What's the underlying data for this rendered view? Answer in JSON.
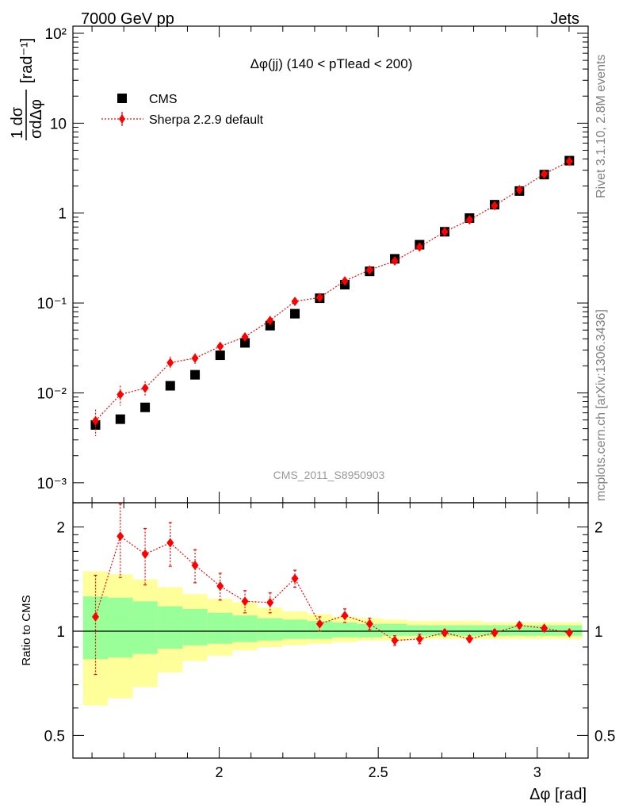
{
  "header": {
    "left": "7000 GeV pp",
    "right": "Jets"
  },
  "side_labels": {
    "rivet": "Rivet 3.1.10,  2.8M events",
    "mcplots": "mcplots.cern.ch [arXiv:1306.3436]"
  },
  "watermark": "CMS_2011_S8950903",
  "colors": {
    "data": "#000000",
    "mc": "#ff0000",
    "band_inner": "#99ff99",
    "band_outer": "#ffff99"
  },
  "chart_data": [
    {
      "type": "scatter",
      "title": "Δφ(jj) (140 < pTlead <  200)",
      "ylabel": "1/σ dσ/dΔφ [rad⁻¹]",
      "xlabel": "Δφ [rad]",
      "log_y": true,
      "xlim": [
        1.54,
        3.16
      ],
      "ylim": [
        0.0006,
        120
      ],
      "y_ticks": [
        "10⁻³",
        "10⁻²",
        "10⁻¹",
        "1",
        "10",
        "10²"
      ],
      "legend_position": "top-left",
      "x": [
        1.611,
        1.689,
        1.767,
        1.846,
        1.924,
        2.003,
        2.081,
        2.16,
        2.238,
        2.316,
        2.395,
        2.473,
        2.552,
        2.63,
        2.709,
        2.787,
        2.866,
        2.944,
        3.022,
        3.101
      ],
      "series": [
        {
          "name": "CMS",
          "values": [
            0.0044,
            0.0051,
            0.0069,
            0.012,
            0.0159,
            0.0262,
            0.036,
            0.056,
            0.076,
            0.113,
            0.16,
            0.225,
            0.31,
            0.445,
            0.62,
            0.88,
            1.24,
            1.76,
            2.68,
            3.83
          ]
        },
        {
          "name": "Sherpa 2.2.9 default",
          "values": [
            0.0049,
            0.0096,
            0.0113,
            0.0217,
            0.0243,
            0.033,
            0.042,
            0.064,
            0.104,
            0.115,
            0.176,
            0.233,
            0.293,
            0.42,
            0.62,
            0.84,
            1.21,
            1.82,
            2.72,
            3.77
          ],
          "errors": [
            0.0016,
            0.0024,
            0.0022,
            0.0036,
            0.0033,
            0.0034,
            0.0035,
            0.0046,
            0.0064,
            0.006,
            0.008,
            0.009,
            0.01,
            0.012,
            0.015,
            0.018,
            0.022,
            0.028,
            0.033,
            0.04
          ]
        }
      ]
    },
    {
      "type": "scatter",
      "ylabel": "Ratio to CMS",
      "xlabel": "Δφ [rad]",
      "xlim": [
        1.54,
        3.16
      ],
      "ylim": [
        0.43,
        2.35
      ],
      "x_ticks": [
        "2",
        "2.5",
        "3"
      ],
      "y_ticks": [
        "0.5",
        "1",
        "2"
      ],
      "x_edges": [
        1.572,
        1.65,
        1.728,
        1.806,
        1.885,
        1.963,
        2.042,
        2.12,
        2.199,
        2.277,
        2.356,
        2.434,
        2.513,
        2.591,
        2.67,
        2.748,
        2.827,
        2.905,
        2.984,
        3.062,
        3.141
      ],
      "band_outer": [
        [
          0.61,
          1.49
        ],
        [
          0.64,
          1.46
        ],
        [
          0.69,
          1.41
        ],
        [
          0.76,
          1.34
        ],
        [
          0.82,
          1.28
        ],
        [
          0.85,
          1.24
        ],
        [
          0.88,
          1.21
        ],
        [
          0.9,
          1.17
        ],
        [
          0.91,
          1.14
        ],
        [
          0.92,
          1.12
        ],
        [
          0.93,
          1.1
        ],
        [
          0.94,
          1.09
        ],
        [
          0.94,
          1.08
        ],
        [
          0.95,
          1.07
        ],
        [
          0.95,
          1.07
        ],
        [
          0.95,
          1.07
        ],
        [
          0.95,
          1.06
        ],
        [
          0.95,
          1.06
        ],
        [
          0.95,
          1.06
        ],
        [
          0.95,
          1.06
        ]
      ],
      "band_inner": [
        [
          0.83,
          1.26
        ],
        [
          0.84,
          1.25
        ],
        [
          0.86,
          1.22
        ],
        [
          0.89,
          1.18
        ],
        [
          0.91,
          1.16
        ],
        [
          0.92,
          1.13
        ],
        [
          0.93,
          1.11
        ],
        [
          0.94,
          1.09
        ],
        [
          0.95,
          1.08
        ],
        [
          0.95,
          1.07
        ],
        [
          0.96,
          1.06
        ],
        [
          0.96,
          1.05
        ],
        [
          0.97,
          1.05
        ],
        [
          0.97,
          1.04
        ],
        [
          0.97,
          1.04
        ],
        [
          0.97,
          1.04
        ],
        [
          0.97,
          1.04
        ],
        [
          0.97,
          1.04
        ],
        [
          0.97,
          1.04
        ],
        [
          0.97,
          1.04
        ]
      ],
      "series": [
        {
          "name": "Sherpa 2.2.9 default",
          "values": [
            1.1,
            1.88,
            1.67,
            1.8,
            1.55,
            1.35,
            1.22,
            1.21,
            1.42,
            1.05,
            1.11,
            1.05,
            0.94,
            0.95,
            0.99,
            0.95,
            0.99,
            1.04,
            1.02,
            0.99
          ],
          "errors": [
            0.35,
            0.45,
            0.31,
            0.26,
            0.17,
            0.12,
            0.09,
            0.08,
            0.08,
            0.05,
            0.05,
            0.04,
            0.03,
            0.03,
            0.02,
            0.02,
            0.02,
            0.02,
            0.01,
            0.01
          ]
        }
      ]
    }
  ]
}
